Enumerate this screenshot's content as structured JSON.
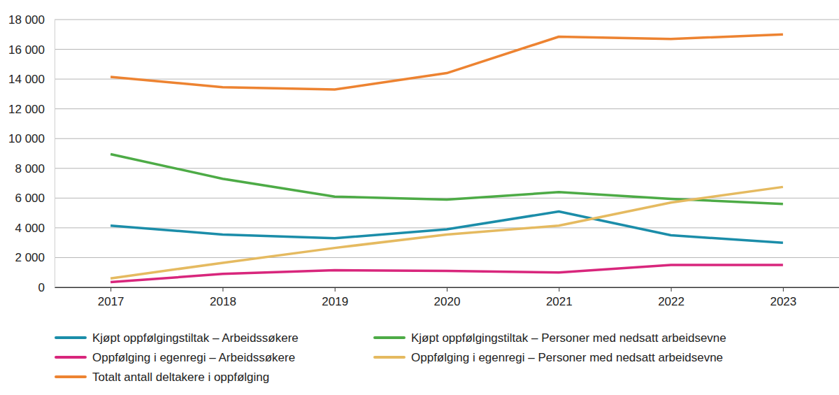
{
  "chart_data": {
    "type": "line",
    "categories": [
      "2017",
      "2018",
      "2019",
      "2020",
      "2021",
      "2022",
      "2023"
    ],
    "series": [
      {
        "name": "Kjøpt oppfølgingstiltak – Arbeidssøkere",
        "color": "#1b8da9",
        "values": [
          4150,
          3550,
          3300,
          3900,
          5100,
          3500,
          3000
        ]
      },
      {
        "name": "Kjøpt oppfølgingstiltak – Personer med nedsatt arbeidsevne",
        "color": "#4dab46",
        "values": [
          8950,
          7300,
          6100,
          5900,
          6400,
          5950,
          5600
        ]
      },
      {
        "name": "Oppfølging i egenregi – Arbeidssøkere",
        "color": "#d8267c",
        "values": [
          350,
          900,
          1150,
          1100,
          1000,
          1500,
          1500
        ]
      },
      {
        "name": "Oppfølging i egenregi – Personer med nedsatt arbeidsevne",
        "color": "#e5ba60",
        "values": [
          600,
          1650,
          2650,
          3550,
          4150,
          5700,
          6750
        ]
      },
      {
        "name": "Totalt antall deltakere i oppfølging",
        "color": "#ed8331",
        "values": [
          14150,
          13450,
          13300,
          14400,
          16850,
          16700,
          17000
        ]
      }
    ],
    "ylim": [
      0,
      18000
    ],
    "yticks": [
      0,
      {
        "value": 2000,
        "label": "2 000"
      },
      {
        "value": 4000,
        "label": "4 000"
      },
      {
        "value": 6000,
        "label": "6 000"
      },
      {
        "value": 8000,
        "label": "8 000"
      },
      {
        "value": 10000,
        "label": "10 000"
      },
      {
        "value": 12000,
        "label": "12 000"
      },
      {
        "value": 14000,
        "label": "14 000"
      },
      {
        "value": 16000,
        "label": "16 000"
      },
      {
        "value": 18000,
        "label": "18 000"
      }
    ],
    "grid": true,
    "legend": "bottom"
  }
}
